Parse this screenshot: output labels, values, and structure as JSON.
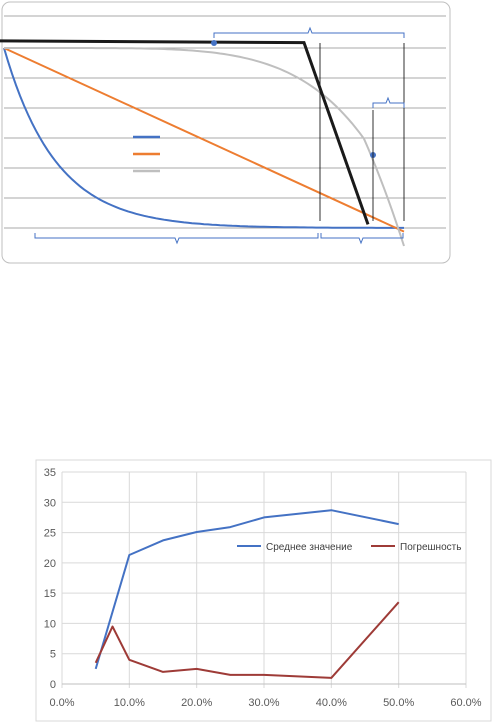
{
  "colors": {
    "blue": "#4472C4",
    "orange": "#ED7D31",
    "gray": "#BFBFBF",
    "black": "#1A1A1A",
    "red": "#9E3B37",
    "grid": "#D9D9D9",
    "axis_text": "#595959"
  },
  "chart_data": [
    {
      "type": "line",
      "title": "",
      "xlabel": "",
      "ylabel": "",
      "grid": true,
      "gridline_count": 6,
      "legend": {
        "placement": "center-left",
        "entries": [
          {
            "color": "#4472C4",
            "label": ""
          },
          {
            "color": "#ED7D31",
            "label": ""
          },
          {
            "color": "#BFBFBF",
            "label": ""
          }
        ]
      },
      "xlim": [
        0,
        100
      ],
      "ylim": [
        0,
        100
      ],
      "series": [
        {
          "color": "#4472C4",
          "style": "exponential decay",
          "x": [
            0,
            5,
            10,
            15,
            20,
            30,
            40,
            50,
            60,
            70,
            80,
            90,
            100
          ],
          "y": [
            100,
            68,
            46,
            31,
            21,
            10,
            4.6,
            2.1,
            1.0,
            0.5,
            0.2,
            0.1,
            0.05
          ]
        },
        {
          "color": "#ED7D31",
          "style": "linear decline",
          "x": [
            0,
            100
          ],
          "y": [
            100,
            -2
          ]
        },
        {
          "color": "#BFBFBF",
          "style": "slow then sharp decline",
          "x": [
            0,
            20,
            40,
            55,
            65,
            72,
            78,
            83,
            88,
            92,
            96,
            100
          ],
          "y": [
            100,
            99.8,
            99,
            97,
            93,
            88,
            80,
            70,
            55,
            40,
            20,
            10
          ]
        },
        {
          "color": "#1A1A1A",
          "style": "flat then steep drop",
          "x": [
            -4,
            75,
            91
          ],
          "y": [
            104,
            103,
            2
          ]
        }
      ],
      "annotations": [
        {
          "kind": "bracket",
          "position": "top",
          "span": "flat segment"
        },
        {
          "kind": "bracket",
          "position": "right",
          "span": "drop segment"
        },
        {
          "kind": "bracket",
          "position": "bottom-left",
          "span": "left interval"
        },
        {
          "kind": "bracket",
          "position": "bottom-right",
          "span": "right interval"
        }
      ]
    },
    {
      "type": "line",
      "title": "",
      "xlabel": "",
      "ylabel": "",
      "grid": true,
      "x_ticks": [
        "0.0%",
        "10.0%",
        "20.0%",
        "30.0%",
        "40.0%",
        "50.0%",
        "60.0%"
      ],
      "y_ticks": [
        "0",
        "5",
        "10",
        "15",
        "20",
        "25",
        "30",
        "35"
      ],
      "xlim": [
        0,
        0.6
      ],
      "ylim": [
        0,
        35
      ],
      "legend": "upper-right",
      "series": [
        {
          "name": "Среднее значение",
          "color": "#4472C4",
          "x": [
            0.05,
            0.1,
            0.15,
            0.2,
            0.25,
            0.3,
            0.4,
            0.5
          ],
          "y": [
            2.5,
            21.3,
            23.7,
            25.1,
            25.9,
            27.5,
            28.7,
            26.4
          ]
        },
        {
          "name": "Погрешность",
          "color": "#9E3B37",
          "x": [
            0.05,
            0.075,
            0.1,
            0.15,
            0.2,
            0.25,
            0.3,
            0.4,
            0.5
          ],
          "y": [
            3.5,
            9.5,
            4.0,
            2.0,
            2.5,
            1.5,
            1.5,
            1.0,
            13.5
          ]
        }
      ]
    }
  ]
}
